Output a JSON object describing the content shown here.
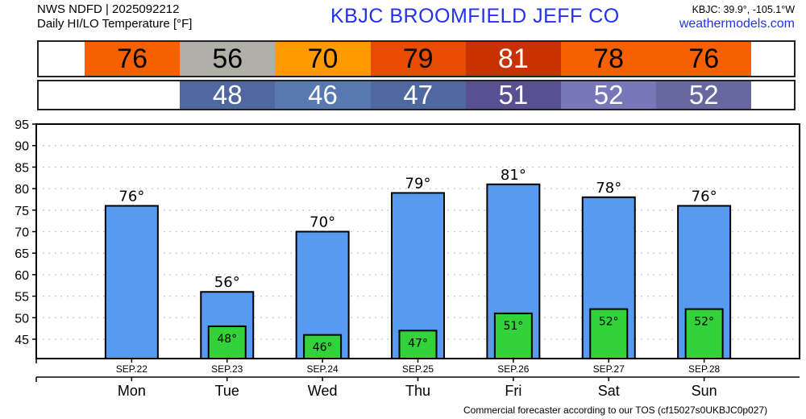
{
  "header": {
    "source": "NWS NDFD | 2025092212",
    "product": "Daily HI/LO Temperature [°F]",
    "station_title": "KBJC   BROOMFIELD JEFF CO",
    "coords": "KBJC: 39.9°, -105.1°W",
    "site": "weathermodels.com"
  },
  "hi_strip": [
    {
      "v": "76",
      "bg": "#f76000",
      "fg": "#000"
    },
    {
      "v": "56",
      "bg": "#b0b0a8",
      "fg": "#000"
    },
    {
      "v": "70",
      "bg": "#ff9a00",
      "fg": "#000"
    },
    {
      "v": "79",
      "bg": "#e84c00",
      "fg": "#000"
    },
    {
      "v": "81",
      "bg": "#c83200",
      "fg": "#fff"
    },
    {
      "v": "78",
      "bg": "#f76000",
      "fg": "#000"
    },
    {
      "v": "76",
      "bg": "#f76000",
      "fg": "#000"
    }
  ],
  "lo_strip": [
    null,
    {
      "v": "48",
      "bg": "#5068a0"
    },
    {
      "v": "46",
      "bg": "#5878b0"
    },
    {
      "v": "47",
      "bg": "#5068a0"
    },
    {
      "v": "51",
      "bg": "#585090"
    },
    {
      "v": "52",
      "bg": "#7878b8"
    },
    {
      "v": "52",
      "bg": "#6868a0"
    }
  ],
  "chart_data": {
    "type": "bar",
    "categories": [
      "Mon",
      "Tue",
      "Wed",
      "Thu",
      "Fri",
      "Sat",
      "Sun"
    ],
    "dates": [
      "SEP.22",
      "SEP.23",
      "SEP.24",
      "SEP.25",
      "SEP.26",
      "SEP.27",
      "SEP.28"
    ],
    "series": [
      {
        "name": "High",
        "values": [
          76,
          56,
          70,
          79,
          81,
          78,
          76
        ],
        "color": "#579bf0"
      },
      {
        "name": "Low",
        "values": [
          null,
          48,
          46,
          47,
          51,
          52,
          52
        ],
        "color": "#33d13a"
      }
    ],
    "ylim": [
      40.5,
      95
    ],
    "yticks": [
      45,
      50,
      55,
      60,
      65,
      70,
      75,
      80,
      85,
      90,
      95
    ],
    "grid": true,
    "label_suffix": "°"
  },
  "footer": "Commercial forecaster according to our TOS (cf15027s0UKBJC0p027)"
}
